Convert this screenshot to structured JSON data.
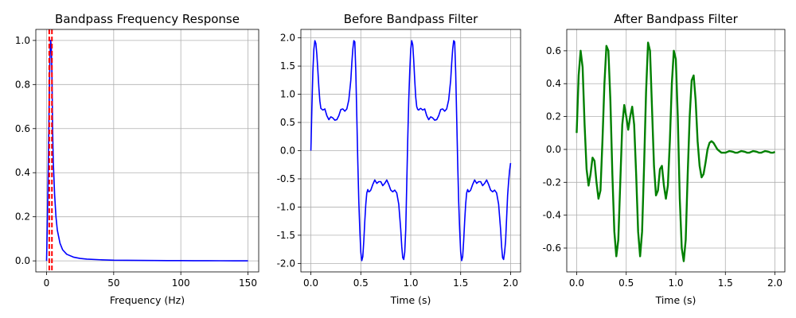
{
  "chart_data": [
    {
      "type": "line",
      "title": "Bandpass Frequency Response",
      "xlabel": "Frequency (Hz)",
      "ylabel": "",
      "xlim": [
        -8,
        158
      ],
      "ylim": [
        -0.05,
        1.05
      ],
      "xticks": [
        0,
        50,
        100,
        150
      ],
      "yticks": [
        0.0,
        0.2,
        0.4,
        0.6,
        0.8,
        1.0
      ],
      "ytick_decimals": 1,
      "grid": true,
      "colors": {
        "line": "#0000ff",
        "markers": "#ff0000"
      },
      "series": [
        {
          "x": [
            0,
            0.5,
            1,
            1.5,
            2,
            2.5,
            3,
            3.5,
            4,
            4.5,
            5,
            6,
            7,
            8,
            10,
            12,
            15,
            20,
            25,
            30,
            40,
            50,
            60,
            70,
            80,
            90,
            100,
            110,
            120,
            130,
            140,
            150
          ],
          "y": [
            0.0,
            0.15,
            0.32,
            0.52,
            0.75,
            0.92,
            1.0,
            0.98,
            0.85,
            0.6,
            0.45,
            0.3,
            0.2,
            0.14,
            0.08,
            0.05,
            0.03,
            0.017,
            0.011,
            0.008,
            0.005,
            0.003,
            0.0025,
            0.002,
            0.0015,
            0.0012,
            0.001,
            0.0008,
            0.0006,
            0.0005,
            0.0004,
            0.0003
          ]
        }
      ],
      "vlines": [
        2,
        4
      ]
    },
    {
      "type": "line",
      "title": "Before Bandpass Filter",
      "xlabel": "Time (s)",
      "ylabel": "",
      "xlim": [
        -0.1,
        2.1
      ],
      "ylim": [
        -2.15,
        2.15
      ],
      "xticks": [
        0.0,
        0.5,
        1.0,
        1.5,
        2.0
      ],
      "xtick_decimals": 1,
      "yticks": [
        -2.0,
        -1.5,
        -1.0,
        -0.5,
        0.0,
        0.5,
        1.0,
        1.5,
        2.0
      ],
      "ytick_decimals": 1,
      "grid": true,
      "colors": {
        "line": "#0000ff"
      },
      "series": [
        {
          "x": [
            0.0,
            0.01,
            0.02,
            0.03,
            0.04,
            0.05,
            0.06,
            0.07,
            0.08,
            0.09,
            0.1,
            0.12,
            0.14,
            0.16,
            0.18,
            0.2,
            0.22,
            0.24,
            0.26,
            0.28,
            0.3,
            0.32,
            0.34,
            0.36,
            0.38,
            0.4,
            0.41,
            0.42,
            0.43,
            0.44,
            0.45,
            0.46,
            0.47,
            0.48,
            0.49,
            0.5,
            0.51,
            0.52,
            0.53,
            0.54,
            0.55,
            0.56,
            0.57,
            0.58,
            0.59,
            0.6,
            0.62,
            0.64,
            0.66,
            0.68,
            0.7,
            0.72,
            0.74,
            0.76,
            0.78,
            0.8,
            0.82,
            0.84,
            0.86,
            0.88,
            0.9,
            0.91,
            0.92,
            0.93,
            0.94,
            0.95,
            0.96,
            0.97,
            0.98,
            0.99,
            1.0,
            1.01,
            1.02,
            1.03,
            1.04,
            1.05,
            1.06,
            1.07,
            1.08,
            1.09,
            1.1,
            1.12,
            1.14,
            1.16,
            1.18,
            1.2,
            1.22,
            1.24,
            1.26,
            1.28,
            1.3,
            1.32,
            1.34,
            1.36,
            1.38,
            1.4,
            1.41,
            1.42,
            1.43,
            1.44,
            1.45,
            1.46,
            1.47,
            1.48,
            1.49,
            1.5,
            1.51,
            1.52,
            1.53,
            1.54,
            1.55,
            1.56,
            1.57,
            1.58,
            1.59,
            1.6,
            1.62,
            1.64,
            1.66,
            1.68,
            1.7,
            1.72,
            1.74,
            1.76,
            1.78,
            1.8,
            1.82,
            1.84,
            1.86,
            1.88,
            1.9,
            1.91,
            1.92,
            1.93,
            1.94,
            1.95,
            1.96,
            1.97,
            1.98,
            1.99,
            2.0
          ],
          "y": [
            0.0,
            0.75,
            1.4,
            1.8,
            1.95,
            1.9,
            1.7,
            1.42,
            1.12,
            0.88,
            0.75,
            0.72,
            0.74,
            0.62,
            0.55,
            0.6,
            0.58,
            0.54,
            0.55,
            0.62,
            0.73,
            0.74,
            0.7,
            0.74,
            0.9,
            1.25,
            1.55,
            1.8,
            1.95,
            1.93,
            1.4,
            0.6,
            -0.2,
            -0.9,
            -1.4,
            -1.8,
            -1.95,
            -1.88,
            -1.6,
            -1.25,
            -0.95,
            -0.75,
            -0.69,
            -0.73,
            -0.72,
            -0.7,
            -0.6,
            -0.52,
            -0.58,
            -0.55,
            -0.55,
            -0.62,
            -0.58,
            -0.52,
            -0.6,
            -0.7,
            -0.73,
            -0.7,
            -0.75,
            -0.95,
            -1.4,
            -1.7,
            -1.9,
            -1.93,
            -1.8,
            -1.4,
            -0.6,
            0.2,
            0.9,
            1.4,
            1.8,
            1.95,
            1.88,
            1.6,
            1.25,
            0.95,
            0.78,
            0.73,
            0.72,
            0.74,
            0.75,
            0.72,
            0.74,
            0.62,
            0.55,
            0.6,
            0.58,
            0.54,
            0.55,
            0.62,
            0.73,
            0.74,
            0.7,
            0.74,
            0.9,
            1.25,
            1.55,
            1.8,
            1.95,
            1.93,
            1.4,
            0.6,
            -0.2,
            -0.9,
            -1.4,
            -1.8,
            -1.95,
            -1.88,
            -1.6,
            -1.25,
            -0.95,
            -0.75,
            -0.69,
            -0.73,
            -0.72,
            -0.7,
            -0.6,
            -0.52,
            -0.58,
            -0.55,
            -0.55,
            -0.62,
            -0.58,
            -0.52,
            -0.6,
            -0.7,
            -0.73,
            -0.7,
            -0.75,
            -0.95,
            -1.4,
            -1.7,
            -1.9,
            -1.93,
            -1.8,
            -1.6,
            -1.2,
            -0.8,
            -0.55,
            -0.35,
            -0.22
          ]
        }
      ]
    },
    {
      "type": "line",
      "title": "After Bandpass Filter",
      "xlabel": "Time (s)",
      "ylabel": "",
      "xlim": [
        -0.1,
        2.1
      ],
      "ylim": [
        -0.745,
        0.73
      ],
      "xticks": [
        0.0,
        0.5,
        1.0,
        1.5,
        2.0
      ],
      "xtick_decimals": 1,
      "yticks": [
        -0.6,
        -0.4,
        -0.2,
        0.0,
        0.2,
        0.4,
        0.6
      ],
      "ytick_decimals": 1,
      "grid": true,
      "colors": {
        "line": "#008000"
      },
      "series": [
        {
          "x": [
            0.0,
            0.02,
            0.04,
            0.06,
            0.08,
            0.1,
            0.12,
            0.14,
            0.16,
            0.18,
            0.2,
            0.22,
            0.24,
            0.26,
            0.28,
            0.3,
            0.32,
            0.34,
            0.36,
            0.38,
            0.4,
            0.42,
            0.44,
            0.46,
            0.48,
            0.5,
            0.52,
            0.54,
            0.56,
            0.58,
            0.6,
            0.62,
            0.64,
            0.66,
            0.68,
            0.7,
            0.72,
            0.74,
            0.76,
            0.78,
            0.8,
            0.82,
            0.84,
            0.86,
            0.88,
            0.9,
            0.92,
            0.94,
            0.96,
            0.98,
            1.0,
            1.02,
            1.04,
            1.06,
            1.08,
            1.1,
            1.12,
            1.14,
            1.16,
            1.18,
            1.2,
            1.22,
            1.24,
            1.26,
            1.28,
            1.3,
            1.32,
            1.34,
            1.36,
            1.38,
            1.4,
            1.42,
            1.44,
            1.46,
            1.48,
            1.5,
            1.52,
            1.54,
            1.56,
            1.58,
            1.6,
            1.62,
            1.64,
            1.66,
            1.68,
            1.7,
            1.72,
            1.74,
            1.76,
            1.78,
            1.8,
            1.82,
            1.84,
            1.86,
            1.88,
            1.9,
            1.92,
            1.94,
            1.96,
            1.98,
            2.0
          ],
          "y": [
            0.1,
            0.45,
            0.6,
            0.5,
            0.15,
            -0.12,
            -0.22,
            -0.15,
            -0.05,
            -0.07,
            -0.2,
            -0.3,
            -0.25,
            0.05,
            0.4,
            0.63,
            0.6,
            0.3,
            -0.15,
            -0.5,
            -0.65,
            -0.55,
            -0.2,
            0.15,
            0.27,
            0.2,
            0.12,
            0.2,
            0.26,
            0.15,
            -0.15,
            -0.5,
            -0.65,
            -0.5,
            -0.1,
            0.35,
            0.65,
            0.6,
            0.25,
            -0.1,
            -0.28,
            -0.25,
            -0.12,
            -0.1,
            -0.22,
            -0.3,
            -0.22,
            0.05,
            0.4,
            0.6,
            0.55,
            0.2,
            -0.3,
            -0.6,
            -0.68,
            -0.55,
            -0.15,
            0.2,
            0.42,
            0.45,
            0.3,
            0.05,
            -0.1,
            -0.17,
            -0.15,
            -0.08,
            0.0,
            0.04,
            0.05,
            0.04,
            0.02,
            0.0,
            -0.01,
            -0.02,
            -0.02,
            -0.02,
            -0.015,
            -0.01,
            -0.012,
            -0.015,
            -0.02,
            -0.02,
            -0.015,
            -0.01,
            -0.012,
            -0.015,
            -0.02,
            -0.02,
            -0.015,
            -0.01,
            -0.012,
            -0.015,
            -0.02,
            -0.02,
            -0.015,
            -0.01,
            -0.012,
            -0.015,
            -0.02,
            -0.02,
            -0.015
          ]
        }
      ]
    }
  ]
}
